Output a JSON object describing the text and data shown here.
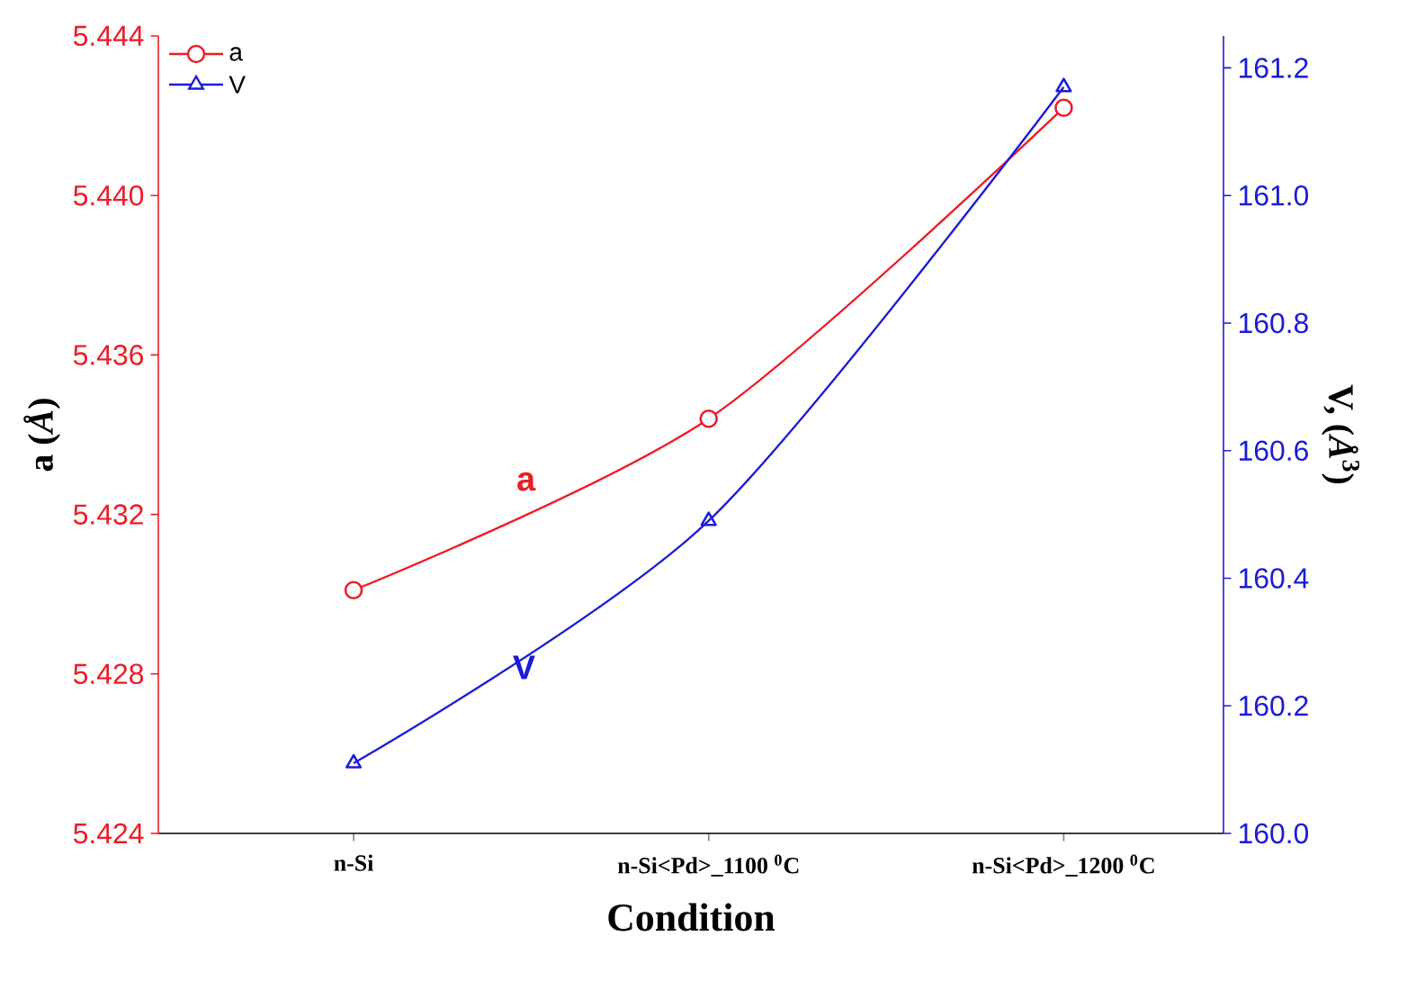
{
  "chart_data": {
    "type": "line",
    "xlabel": "Condition",
    "ylabel": "a (*Å*)",
    "y2label": "V, (*Å*$^{3}$)",
    "categories": [
      "n-Si",
      "n-Si<Pd>_1100 $^{0}$C",
      "n-Si<Pd>_1200 $^{0}$C"
    ],
    "series": [
      {
        "name": "a",
        "color": "#ee1c25",
        "values": [
          5.4301,
          5.4344,
          5.4422
        ],
        "marker": "circle"
      },
      {
        "name": "V",
        "color": "#1c1cd8",
        "values": [
          160.11,
          160.49,
          161.17
        ],
        "marker": "triangle",
        "axis": "y2"
      }
    ],
    "ylim": [
      5.424,
      5.444
    ],
    "yticks": [
      5.424,
      5.428,
      5.432,
      5.436,
      {
        "value": 5.44,
        "label": "5.440"
      },
      5.444
    ],
    "y2lim": [
      160.0,
      161.25
    ],
    "y2ticks": [
      {
        "value": 160,
        "label": "160.0"
      },
      160.2,
      160.4,
      160.6,
      160.8,
      {
        "value": 161,
        "label": "161.0"
      },
      161.2
    ],
    "grid": false,
    "legend": "top left",
    "line_style": "solid"
  }
}
